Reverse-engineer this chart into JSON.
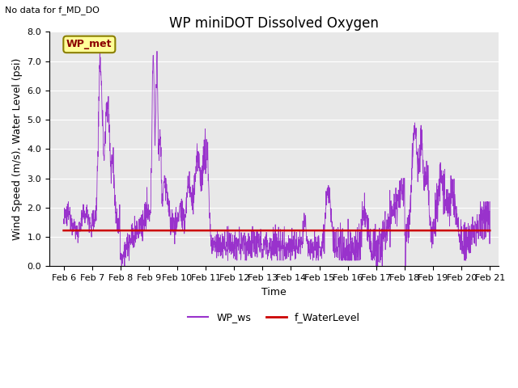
{
  "title": "WP miniDOT Dissolved Oxygen",
  "subtitle": "No data for f_MD_DO",
  "xlabel": "Time",
  "ylabel": "Wind Speed (m/s), Water Level (psi)",
  "xlim_days": [
    5.5,
    21.3
  ],
  "ylim": [
    0.0,
    8.0
  ],
  "yticks": [
    0.0,
    1.0,
    2.0,
    3.0,
    4.0,
    5.0,
    6.0,
    7.0,
    8.0
  ],
  "xtick_labels": [
    "Feb 6",
    "Feb 7",
    "Feb 8",
    "Feb 9",
    "Feb 10",
    "Feb 11",
    "Feb 12",
    "Feb 13",
    "Feb 14",
    "Feb 15",
    "Feb 16",
    "Feb 17",
    "Feb 18",
    "Feb 19",
    "Feb 20",
    "Feb 21"
  ],
  "xtick_positions": [
    6,
    7,
    8,
    9,
    10,
    11,
    12,
    13,
    14,
    15,
    16,
    17,
    18,
    19,
    20,
    21
  ],
  "water_level_value": 1.22,
  "wp_ws_color": "#9932CC",
  "f_water_level_color": "#CC0000",
  "background_color": "#E8E8E8",
  "legend_label_ws": "WP_ws",
  "legend_label_wl": "f_WaterLevel",
  "annotation_text": "WP_met",
  "title_fontsize": 12,
  "axis_label_fontsize": 9,
  "tick_fontsize": 8
}
